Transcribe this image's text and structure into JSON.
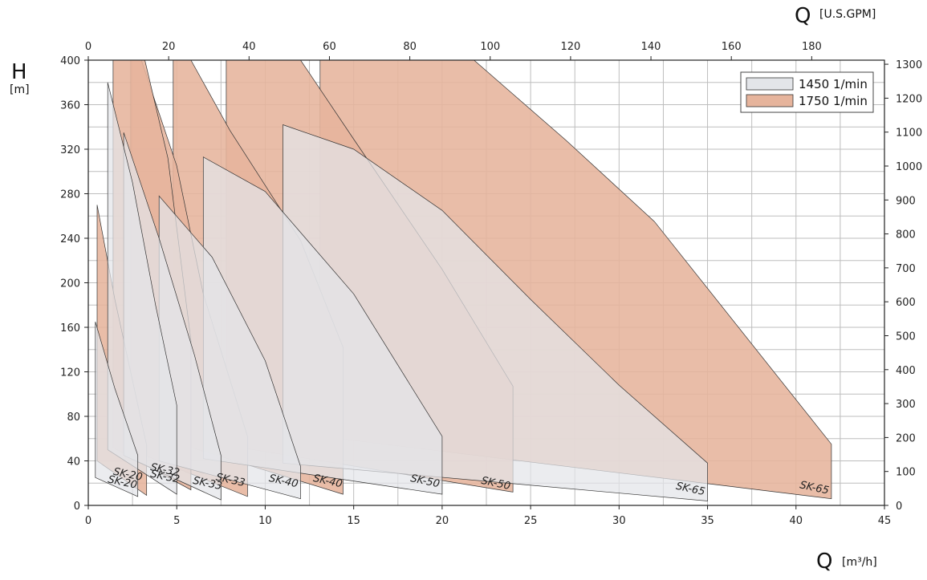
{
  "chart_data": {
    "type": "area",
    "title": "",
    "xlabel": "Q",
    "xunit": "[m³/h]",
    "x2label": "Q",
    "x2unit": "[U.S.GPM]",
    "ylabel": "H",
    "yunit": "[m]",
    "xlim": [
      0,
      45
    ],
    "ylim": [
      0,
      400
    ],
    "x2lim": [
      0,
      198.1
    ],
    "y2lim": [
      0,
      1312
    ],
    "xticks": [
      0,
      5,
      10,
      15,
      20,
      25,
      30,
      35,
      40,
      45
    ],
    "yticks": [
      0,
      40,
      80,
      120,
      160,
      200,
      240,
      280,
      320,
      360,
      400
    ],
    "x2ticks": [
      0,
      20,
      40,
      60,
      80,
      100,
      120,
      140,
      160,
      180
    ],
    "y2ticks": [
      0,
      100,
      200,
      300,
      400,
      500,
      600,
      700,
      800,
      900,
      1000,
      1100,
      1200,
      1300
    ],
    "grid": true,
    "legend_position": "top-right",
    "legend": [
      {
        "name": "1450 1/min",
        "color": "#e3e5e9"
      },
      {
        "name": "1750 1/min",
        "color": "#e6b49c"
      }
    ],
    "series": [
      {
        "name": "SK-65 1750",
        "speed": "1750",
        "label": "SK-65",
        "label_at": [
          41,
          13
        ],
        "polygon": [
          [
            13.1,
            400
          ],
          [
            21.8,
            400
          ],
          [
            27,
            328
          ],
          [
            32,
            255
          ],
          [
            42,
            55
          ],
          [
            42,
            6
          ],
          [
            13.1,
            62
          ]
        ]
      },
      {
        "name": "SK-50 1750",
        "speed": "1750",
        "label": "SK-50",
        "label_at": [
          23,
          17
        ],
        "polygon": [
          [
            7.8,
            400
          ],
          [
            12.0,
            400
          ],
          [
            15,
            329
          ],
          [
            20,
            212
          ],
          [
            24,
            107
          ],
          [
            24,
            12
          ],
          [
            7.8,
            54
          ]
        ]
      },
      {
        "name": "SK-40 1750",
        "speed": "1750",
        "label": "SK-40",
        "label_at": [
          13.5,
          19
        ],
        "polygon": [
          [
            4.8,
            400
          ],
          [
            5.8,
            400
          ],
          [
            8,
            337
          ],
          [
            12,
            238
          ],
          [
            14.4,
            142
          ],
          [
            14.4,
            10
          ],
          [
            4.8,
            57
          ]
        ]
      },
      {
        "name": "SK-33 1750",
        "speed": "1750",
        "label": "SK-33",
        "label_at": [
          8,
          20
        ],
        "polygon": [
          [
            2.4,
            400
          ],
          [
            3.0,
            400
          ],
          [
            5,
            305
          ],
          [
            6.5,
            190
          ],
          [
            9,
            62
          ],
          [
            9,
            8
          ],
          [
            2.4,
            50
          ]
        ]
      },
      {
        "name": "SK-32 1750",
        "speed": "1750",
        "label": "SK-32",
        "label_at": [
          4.3,
          29
        ],
        "polygon": [
          [
            1.4,
            400
          ],
          [
            3.2,
            400
          ],
          [
            4.5,
            312
          ],
          [
            5.8,
            148
          ],
          [
            5.8,
            14
          ],
          [
            1.4,
            52
          ]
        ]
      },
      {
        "name": "SK-20 1750",
        "speed": "1750",
        "label": "SK-20",
        "label_at": [
          2.2,
          25
        ],
        "polygon": [
          [
            0.5,
            270
          ],
          [
            1.5,
            185
          ],
          [
            3.3,
            54
          ],
          [
            3.3,
            9
          ],
          [
            0.5,
            40
          ]
        ]
      },
      {
        "name": "SK-65 1450",
        "speed": "1450",
        "label": "SK-65",
        "label_at": [
          34,
          12
        ],
        "polygon": [
          [
            11.0,
            342
          ],
          [
            15,
            320
          ],
          [
            20,
            265
          ],
          [
            25,
            185
          ],
          [
            30,
            108
          ],
          [
            35,
            38
          ],
          [
            35,
            4
          ],
          [
            11.0,
            38
          ]
        ]
      },
      {
        "name": "SK-50 1450",
        "speed": "1450",
        "label": "SK-50",
        "label_at": [
          19,
          19
        ],
        "polygon": [
          [
            6.5,
            313
          ],
          [
            10,
            282
          ],
          [
            15,
            190
          ],
          [
            20,
            62
          ],
          [
            20,
            10
          ],
          [
            6.5,
            42
          ]
        ]
      },
      {
        "name": "SK-40 1450",
        "speed": "1450",
        "label": "SK-40",
        "label_at": [
          11,
          19
        ],
        "polygon": [
          [
            4.0,
            278
          ],
          [
            7,
            223
          ],
          [
            10,
            130
          ],
          [
            12,
            35
          ],
          [
            12,
            6
          ],
          [
            4.0,
            40
          ]
        ]
      },
      {
        "name": "SK-33 1450",
        "speed": "1450",
        "label": "SK-33",
        "label_at": [
          6.7,
          17
        ],
        "polygon": [
          [
            2.0,
            335
          ],
          [
            4,
            240
          ],
          [
            6,
            135
          ],
          [
            7.5,
            45
          ],
          [
            7.5,
            5
          ],
          [
            2.0,
            45
          ]
        ]
      },
      {
        "name": "SK-32 1450",
        "speed": "1450",
        "label": "SK-32",
        "label_at": [
          4.3,
          23
        ],
        "polygon": [
          [
            1.1,
            380
          ],
          [
            2.5,
            290
          ],
          [
            3.8,
            180
          ],
          [
            5,
            90
          ],
          [
            5,
            10
          ],
          [
            1.1,
            50
          ]
        ]
      },
      {
        "name": "SK-20 1450",
        "speed": "1450",
        "label": "SK-20",
        "label_at": [
          1.9,
          18
        ],
        "polygon": [
          [
            0.4,
            165
          ],
          [
            1.5,
            105
          ],
          [
            2.8,
            45
          ],
          [
            2.8,
            8
          ],
          [
            0.4,
            25
          ]
        ]
      }
    ]
  }
}
